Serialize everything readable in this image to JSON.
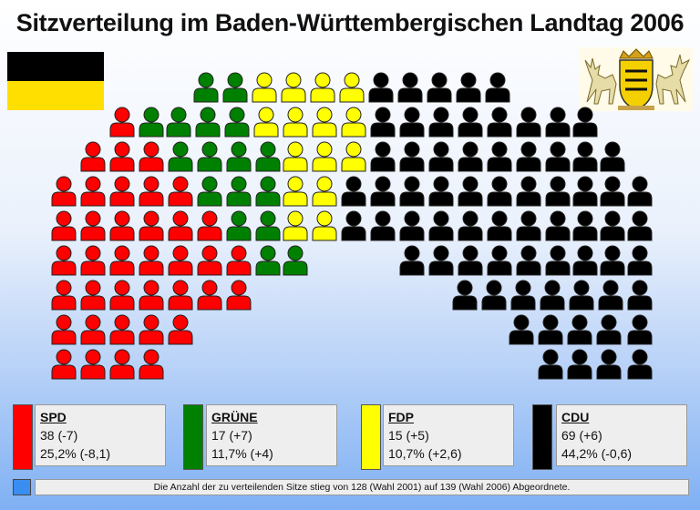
{
  "title": "Sitzverteilung im Baden-Württembergischen Landtag 2006",
  "colors": {
    "SPD": "#ff0000",
    "GRÜNE": "#008000",
    "FDP": "#ffff00",
    "CDU": "#000000"
  },
  "legend": [
    {
      "party": "SPD",
      "color": "#ff0000",
      "seats_line": "38 (-7)",
      "percent_line": "25,2% (-8,1)"
    },
    {
      "party": "GRÜNE",
      "color": "#008000",
      "seats_line": "17 (+7)",
      "percent_line": "11,7% (+4)"
    },
    {
      "party": "FDP",
      "color": "#ffff00",
      "seats_line": "15 (+5)",
      "percent_line": "10,7% (+2,6)"
    },
    {
      "party": "CDU",
      "color": "#000000",
      "seats_line": "69 (+6)",
      "percent_line": "44,2% (-0,6)"
    }
  ],
  "note": "Die Anzahl der zu verteilenden Sitze stieg von 128 (Wahl 2001) auf 139 (Wahl 2006) Abgeordnete.",
  "chart_data": {
    "type": "bar",
    "title": "Sitzverteilung im Baden-Württembergischen Landtag 2006",
    "categories": [
      "SPD",
      "GRÜNE",
      "FDP",
      "CDU"
    ],
    "series": [
      {
        "values": [
          38,
          17,
          15,
          69
        ]
      }
    ],
    "seat_change": [
      -7,
      7,
      5,
      6
    ],
    "vote_share_percent": [
      25.2,
      11.7,
      10.7,
      44.2
    ],
    "vote_share_change": [
      -8.1,
      4,
      2.6,
      -0.6
    ],
    "total_seats": 139
  }
}
